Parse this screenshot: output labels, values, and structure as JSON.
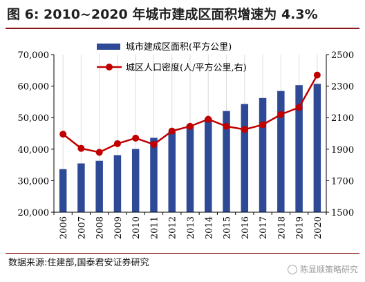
{
  "title": "图 6:  2010~2020 年城市建成区面积增速为 4.3%",
  "source": "数据来源:住建部,国泰君安证券研究",
  "watermark": "陈显顺策略研究",
  "colors": {
    "bar": "#2e4a96",
    "line": "#c00000",
    "grid": "#dcdcdc",
    "axis": "#000000"
  },
  "chart_data": {
    "type": "bar",
    "categories": [
      "2006",
      "2007",
      "2008",
      "2009",
      "2010",
      "2011",
      "2012",
      "2013",
      "2014",
      "2015",
      "2016",
      "2017",
      "2018",
      "2019",
      "2020"
    ],
    "series": [
      {
        "name": "城市建成区面积(平方公里)",
        "type": "bar",
        "axis": "left",
        "values": [
          33660,
          35470,
          36295,
          38107,
          40058,
          43603,
          45566,
          47855,
          49773,
          52102,
          54331,
          56225,
          58456,
          60312,
          60721
        ]
      },
      {
        "name": "城区人口密度(人/平方公里,右)",
        "type": "line",
        "axis": "right",
        "values": [
          1995,
          1905,
          1880,
          1935,
          1970,
          1930,
          2015,
          2045,
          2090,
          2045,
          2025,
          2055,
          2120,
          2165,
          2370
        ]
      }
    ],
    "y_left": {
      "min": 20000,
      "max": 70000,
      "ticks": [
        "20,000",
        "30,000",
        "40,000",
        "50,000",
        "60,000",
        "70,000"
      ],
      "tick_values": [
        20000,
        30000,
        40000,
        50000,
        60000,
        70000
      ]
    },
    "y_right": {
      "min": 1500,
      "max": 2500,
      "ticks": [
        "1500",
        "1700",
        "1900",
        "2100",
        "2300",
        "2500"
      ],
      "tick_values": [
        1500,
        1700,
        1900,
        2100,
        2300,
        2500
      ]
    },
    "grid": true,
    "legend": "top"
  }
}
